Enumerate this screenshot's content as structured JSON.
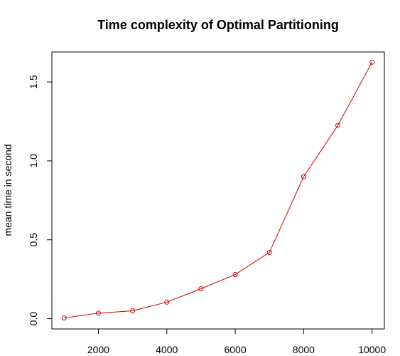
{
  "chart_data": {
    "type": "line",
    "title": "Time complexity of Optimal Partitioning",
    "xlabel": "",
    "ylabel": "mean time in second",
    "x": [
      1000,
      2000,
      3000,
      4000,
      5000,
      6000,
      7000,
      8000,
      9000,
      10000
    ],
    "series": [
      {
        "values": [
          0.005,
          0.035,
          0.05,
          0.105,
          0.19,
          0.28,
          0.42,
          0.9,
          1.225,
          1.625
        ]
      }
    ],
    "xlim": [
      640,
      10360
    ],
    "ylim": [
      -0.065,
      1.69
    ],
    "xticks": [
      2000,
      4000,
      6000,
      8000,
      10000
    ],
    "xtick_labels": [
      "2000",
      "4000",
      "6000",
      "8000",
      "10000"
    ],
    "yticks": [
      0.0,
      0.5,
      1.0,
      1.5
    ],
    "ytick_labels": [
      "0.0",
      "0.5",
      "1.0",
      "1.5"
    ],
    "grid": false,
    "legend": "none",
    "colors": {
      "series": "#cc0000",
      "axes": "#000000",
      "background": "#ffffff"
    },
    "marker": "open-circle"
  }
}
